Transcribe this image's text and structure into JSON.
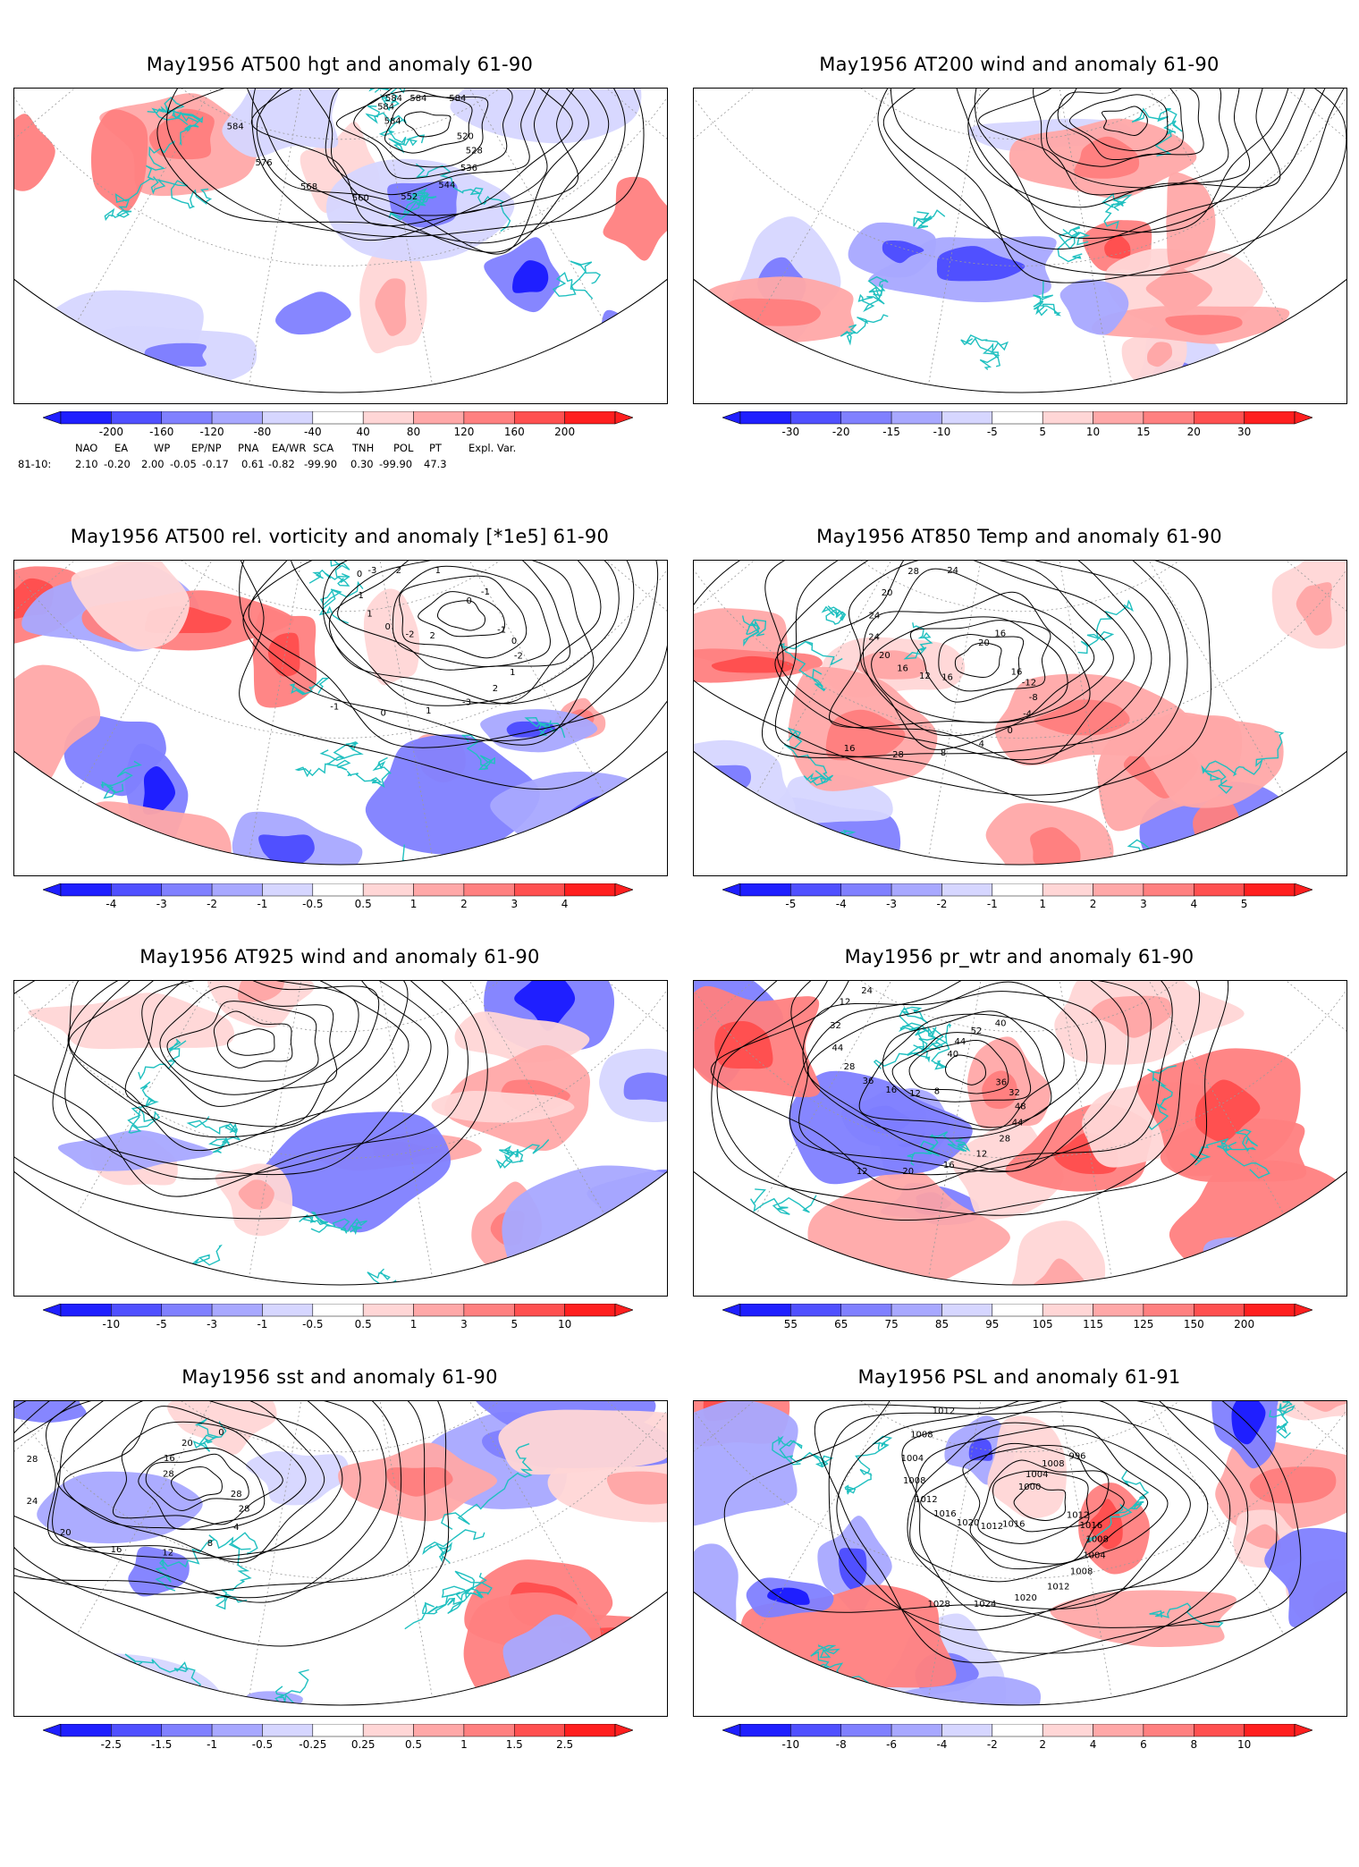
{
  "palette": {
    "blue": [
      "#1f1fff",
      "#5050ff",
      "#8080ff",
      "#a8a8ff",
      "#d6d6ff"
    ],
    "red": [
      "#ffd6d6",
      "#ffa8a8",
      "#ff8080",
      "#ff5050",
      "#ff1f1f"
    ],
    "coast": "#20c0c0",
    "contour": "#000000",
    "graticule": "#9a9a9a"
  },
  "panels": [
    {
      "id": "hgt500",
      "title": "May1956 AT500 hgt and anomaly 61-90",
      "cbar_labels": [
        "-200",
        "-160",
        "-120",
        "-80",
        "-40",
        "40",
        "80",
        "120",
        "160",
        "200"
      ],
      "contour_labels": [
        "520",
        "528",
        "536",
        "544",
        "552",
        "560",
        "568",
        "576",
        "584",
        "584",
        "584",
        "584",
        "584",
        "584"
      ],
      "indices": {
        "headers": [
          "NAO",
          "EA",
          "WP",
          "EP/NP",
          "PNA",
          "EA/WR",
          "SCA",
          "TNH",
          "POL",
          "PT",
          "Expl. Var."
        ],
        "row_label": "81-10:",
        "values": [
          "2.10",
          "-0.20",
          "2.00",
          "-0.05",
          "-0.17",
          "0.61",
          "-0.82",
          "-99.90",
          "0.30",
          "-99.90",
          "47.3"
        ]
      }
    },
    {
      "id": "wind200",
      "title": "May1956 AT200 wind and anomaly 61-90",
      "cbar_labels": [
        "-30",
        "-20",
        "-15",
        "-10",
        "-5",
        "5",
        "10",
        "15",
        "20",
        "30"
      ],
      "contour_labels": []
    },
    {
      "id": "vort500",
      "title": "May1956 AT500 rel. vorticity and anomaly [*1e5] 61-90",
      "cbar_labels": [
        "-4",
        "-3",
        "-2",
        "-1",
        "-0.5",
        "0.5",
        "1",
        "2",
        "3",
        "4"
      ],
      "contour_labels": [
        "-1",
        "0",
        "-2",
        "1",
        "2",
        "-3",
        "1",
        "0",
        "-1",
        "2",
        "-2",
        "0",
        "1",
        "-1",
        "0",
        "-3",
        "2",
        "1",
        "0",
        "-1"
      ]
    },
    {
      "id": "temp850",
      "title": "May1956 AT850 Temp and anomaly 61-90",
      "cbar_labels": [
        "-5",
        "-4",
        "-3",
        "-2",
        "-1",
        "1",
        "2",
        "3",
        "4",
        "5"
      ],
      "contour_labels": [
        "16",
        "-12",
        "-8",
        "-4",
        "0",
        "4",
        "8",
        "28",
        "16",
        "16",
        "12",
        "16",
        "20",
        "24",
        "24",
        "20",
        "28",
        "24",
        "20",
        "16"
      ]
    },
    {
      "id": "wind925",
      "title": "May1956 AT925 wind and anomaly 61-90",
      "cbar_labels": [
        "-10",
        "-5",
        "-3",
        "-1",
        "-0.5",
        "0.5",
        "1",
        "3",
        "5",
        "10"
      ],
      "contour_labels": []
    },
    {
      "id": "prwtr",
      "title": "May1956 pr_wtr and anomaly 61-90",
      "cbar_labels": [
        "55",
        "65",
        "75",
        "85",
        "95",
        "105",
        "115",
        "125",
        "150",
        "200"
      ],
      "contour_labels": [
        "36",
        "32",
        "48",
        "44",
        "28",
        "12",
        "16",
        "20",
        "12",
        "8",
        "12",
        "16",
        "36",
        "28",
        "44",
        "32",
        "12",
        "24",
        "40",
        "44",
        "52",
        "40"
      ]
    },
    {
      "id": "sst",
      "title": "May1956 sst and anomaly 61-90",
      "cbar_labels": [
        "-2.5",
        "-1.5",
        "-1",
        "-0.5",
        "-0.25",
        "0.25",
        "0.5",
        "1",
        "1.5",
        "2.5"
      ],
      "contour_labels": [
        "28",
        "28",
        "4",
        "8",
        "12",
        "16",
        "20",
        "24",
        "28",
        "28",
        "16",
        "20",
        "0"
      ]
    },
    {
      "id": "psl",
      "title": "May1956 PSL and anomaly 61-91",
      "cbar_labels": [
        "-10",
        "-8",
        "-6",
        "-4",
        "-2",
        "2",
        "4",
        "6",
        "8",
        "10"
      ],
      "contour_labels": [
        "1012",
        "1016",
        "1008",
        "1004",
        "1008",
        "1012",
        "1020",
        "1024",
        "1028",
        "1016",
        "1012",
        "1020",
        "1016",
        "1012",
        "1008",
        "1004",
        "1008",
        "1012",
        "1000",
        "1004",
        "1008",
        "996"
      ]
    }
  ]
}
